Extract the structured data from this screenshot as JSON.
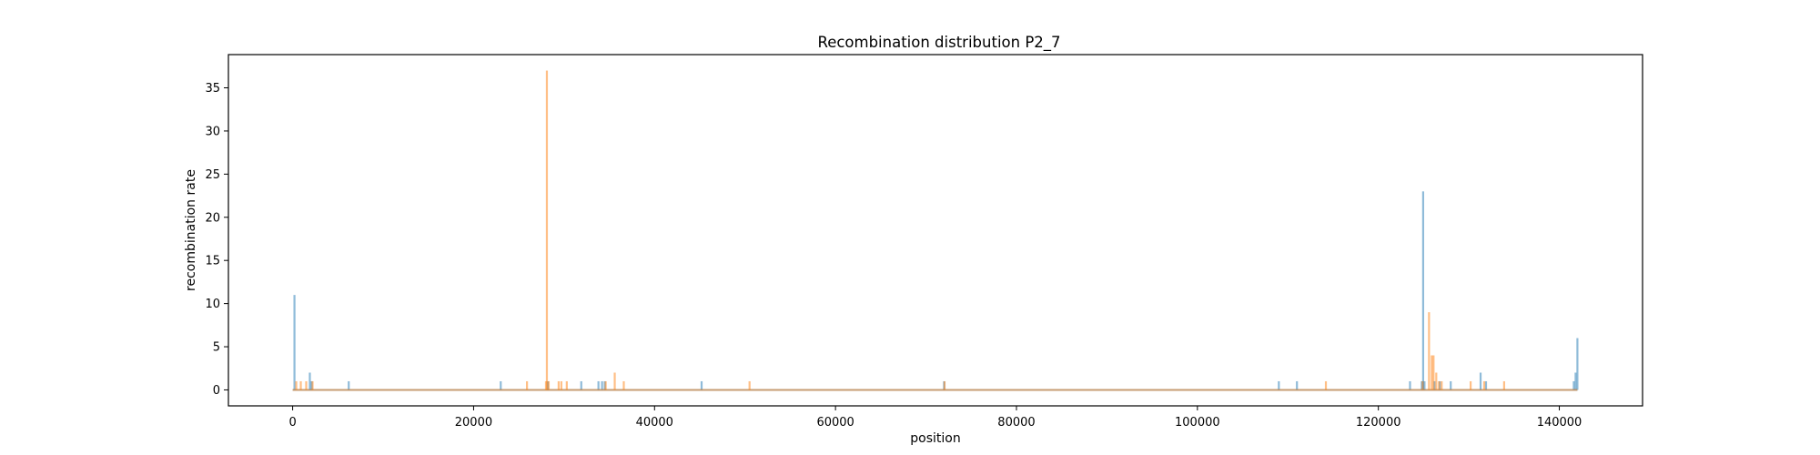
{
  "chart_data": {
    "type": "bar",
    "title": "Recombination distribution P2_7",
    "xlabel": "position",
    "ylabel": "recombination rate",
    "xlim": [
      -7100,
      149200
    ],
    "ylim": [
      -1.85,
      38.85
    ],
    "grid": false,
    "legend": "none",
    "x_ticks": [
      0,
      20000,
      40000,
      60000,
      80000,
      100000,
      120000,
      140000
    ],
    "x_tick_labels": [
      "0",
      "20000",
      "40000",
      "60000",
      "80000",
      "100000",
      "120000",
      "140000"
    ],
    "y_ticks": [
      0,
      5,
      10,
      15,
      20,
      25,
      30,
      35
    ],
    "y_tick_labels": [
      "0",
      "5",
      "10",
      "15",
      "20",
      "25",
      "30",
      "35"
    ],
    "x_range": [
      0,
      142000
    ],
    "series": [
      {
        "color": "#1f77b4",
        "opacity": 0.5,
        "points": [
          [
            200,
            11
          ],
          [
            1900,
            2
          ],
          [
            2100,
            1
          ],
          [
            6200,
            1
          ],
          [
            23000,
            1
          ],
          [
            28200,
            1
          ],
          [
            31900,
            1
          ],
          [
            33800,
            1
          ],
          [
            34200,
            1
          ],
          [
            34500,
            1
          ],
          [
            45200,
            1
          ],
          [
            72000,
            1
          ],
          [
            109000,
            1
          ],
          [
            111000,
            1
          ],
          [
            123500,
            1
          ],
          [
            124800,
            1
          ],
          [
            124950,
            23
          ],
          [
            125100,
            1
          ],
          [
            126200,
            1
          ],
          [
            126800,
            1
          ],
          [
            128000,
            1
          ],
          [
            131300,
            2
          ],
          [
            131900,
            1
          ],
          [
            141600,
            1
          ],
          [
            141800,
            2
          ],
          [
            142000,
            6
          ]
        ]
      },
      {
        "color": "#ff7f0e",
        "opacity": 0.5,
        "points": [
          [
            400,
            1
          ],
          [
            900,
            1
          ],
          [
            1500,
            1
          ],
          [
            2200,
            1
          ],
          [
            25900,
            1
          ],
          [
            28000,
            1
          ],
          [
            28100,
            37
          ],
          [
            28300,
            1
          ],
          [
            29400,
            1
          ],
          [
            29700,
            1
          ],
          [
            30300,
            1
          ],
          [
            34600,
            1
          ],
          [
            35600,
            2
          ],
          [
            36600,
            1
          ],
          [
            50500,
            1
          ],
          [
            72050,
            1
          ],
          [
            114200,
            1
          ],
          [
            124900,
            1
          ],
          [
            125600,
            9
          ],
          [
            125900,
            4
          ],
          [
            126100,
            4
          ],
          [
            126400,
            2
          ],
          [
            126700,
            1
          ],
          [
            127000,
            1
          ],
          [
            130200,
            1
          ],
          [
            131700,
            1
          ],
          [
            133900,
            1
          ]
        ]
      }
    ]
  }
}
